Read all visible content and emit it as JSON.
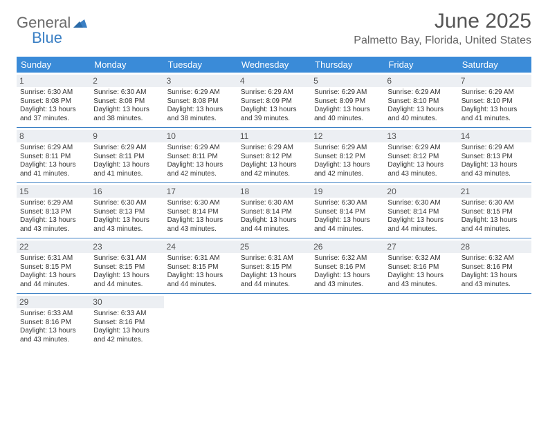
{
  "logo": {
    "text1": "General",
    "text2": "Blue"
  },
  "title": "June 2025",
  "location": "Palmetto Bay, Florida, United States",
  "colors": {
    "header_bg": "#3a8bd8",
    "header_text": "#ffffff",
    "daynum_bg": "#eceff3",
    "week_border": "#3a7fc4",
    "title_color": "#555555",
    "body_text": "#333333"
  },
  "day_names": [
    "Sunday",
    "Monday",
    "Tuesday",
    "Wednesday",
    "Thursday",
    "Friday",
    "Saturday"
  ],
  "days": [
    {
      "n": "1",
      "sr": "6:30 AM",
      "ss": "8:08 PM",
      "dl": "13 hours and 37 minutes."
    },
    {
      "n": "2",
      "sr": "6:30 AM",
      "ss": "8:08 PM",
      "dl": "13 hours and 38 minutes."
    },
    {
      "n": "3",
      "sr": "6:29 AM",
      "ss": "8:08 PM",
      "dl": "13 hours and 38 minutes."
    },
    {
      "n": "4",
      "sr": "6:29 AM",
      "ss": "8:09 PM",
      "dl": "13 hours and 39 minutes."
    },
    {
      "n": "5",
      "sr": "6:29 AM",
      "ss": "8:09 PM",
      "dl": "13 hours and 40 minutes."
    },
    {
      "n": "6",
      "sr": "6:29 AM",
      "ss": "8:10 PM",
      "dl": "13 hours and 40 minutes."
    },
    {
      "n": "7",
      "sr": "6:29 AM",
      "ss": "8:10 PM",
      "dl": "13 hours and 41 minutes."
    },
    {
      "n": "8",
      "sr": "6:29 AM",
      "ss": "8:11 PM",
      "dl": "13 hours and 41 minutes."
    },
    {
      "n": "9",
      "sr": "6:29 AM",
      "ss": "8:11 PM",
      "dl": "13 hours and 41 minutes."
    },
    {
      "n": "10",
      "sr": "6:29 AM",
      "ss": "8:11 PM",
      "dl": "13 hours and 42 minutes."
    },
    {
      "n": "11",
      "sr": "6:29 AM",
      "ss": "8:12 PM",
      "dl": "13 hours and 42 minutes."
    },
    {
      "n": "12",
      "sr": "6:29 AM",
      "ss": "8:12 PM",
      "dl": "13 hours and 42 minutes."
    },
    {
      "n": "13",
      "sr": "6:29 AM",
      "ss": "8:12 PM",
      "dl": "13 hours and 43 minutes."
    },
    {
      "n": "14",
      "sr": "6:29 AM",
      "ss": "8:13 PM",
      "dl": "13 hours and 43 minutes."
    },
    {
      "n": "15",
      "sr": "6:29 AM",
      "ss": "8:13 PM",
      "dl": "13 hours and 43 minutes."
    },
    {
      "n": "16",
      "sr": "6:30 AM",
      "ss": "8:13 PM",
      "dl": "13 hours and 43 minutes."
    },
    {
      "n": "17",
      "sr": "6:30 AM",
      "ss": "8:14 PM",
      "dl": "13 hours and 43 minutes."
    },
    {
      "n": "18",
      "sr": "6:30 AM",
      "ss": "8:14 PM",
      "dl": "13 hours and 44 minutes."
    },
    {
      "n": "19",
      "sr": "6:30 AM",
      "ss": "8:14 PM",
      "dl": "13 hours and 44 minutes."
    },
    {
      "n": "20",
      "sr": "6:30 AM",
      "ss": "8:14 PM",
      "dl": "13 hours and 44 minutes."
    },
    {
      "n": "21",
      "sr": "6:30 AM",
      "ss": "8:15 PM",
      "dl": "13 hours and 44 minutes."
    },
    {
      "n": "22",
      "sr": "6:31 AM",
      "ss": "8:15 PM",
      "dl": "13 hours and 44 minutes."
    },
    {
      "n": "23",
      "sr": "6:31 AM",
      "ss": "8:15 PM",
      "dl": "13 hours and 44 minutes."
    },
    {
      "n": "24",
      "sr": "6:31 AM",
      "ss": "8:15 PM",
      "dl": "13 hours and 44 minutes."
    },
    {
      "n": "25",
      "sr": "6:31 AM",
      "ss": "8:15 PM",
      "dl": "13 hours and 44 minutes."
    },
    {
      "n": "26",
      "sr": "6:32 AM",
      "ss": "8:16 PM",
      "dl": "13 hours and 43 minutes."
    },
    {
      "n": "27",
      "sr": "6:32 AM",
      "ss": "8:16 PM",
      "dl": "13 hours and 43 minutes."
    },
    {
      "n": "28",
      "sr": "6:32 AM",
      "ss": "8:16 PM",
      "dl": "13 hours and 43 minutes."
    },
    {
      "n": "29",
      "sr": "6:33 AM",
      "ss": "8:16 PM",
      "dl": "13 hours and 43 minutes."
    },
    {
      "n": "30",
      "sr": "6:33 AM",
      "ss": "8:16 PM",
      "dl": "13 hours and 42 minutes."
    }
  ],
  "labels": {
    "sunrise": "Sunrise:",
    "sunset": "Sunset:",
    "daylight": "Daylight:"
  },
  "typography": {
    "title_fontsize": 30,
    "location_fontsize": 16,
    "dayheader_fontsize": 13,
    "daynum_fontsize": 12,
    "body_fontsize": 10
  }
}
